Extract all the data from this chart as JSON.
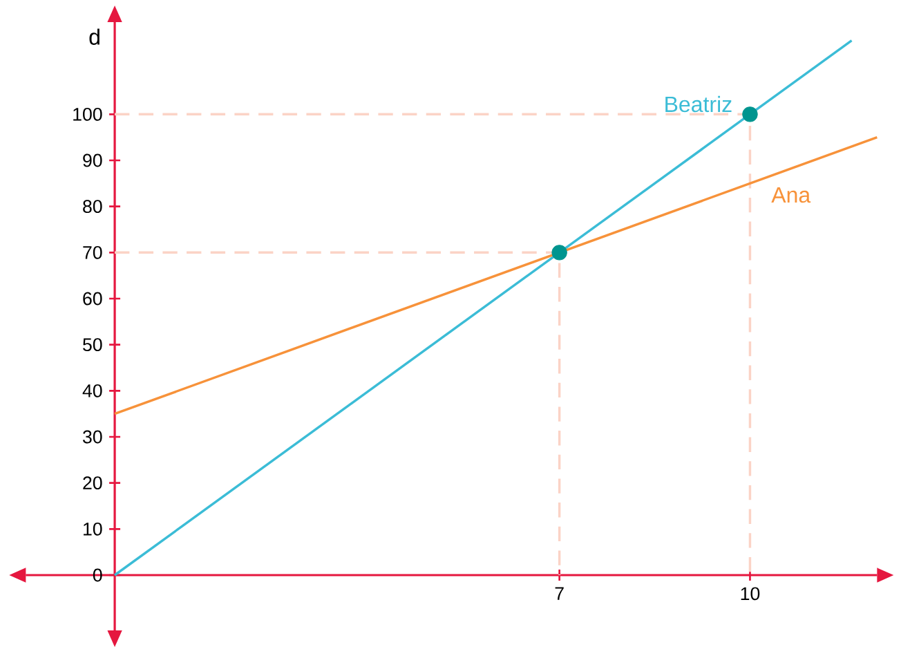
{
  "chart_data": {
    "type": "line",
    "ylabel": "d",
    "xlim": [
      -1.4,
      12
    ],
    "ylim": [
      -12,
      120
    ],
    "xticks": [
      7,
      10
    ],
    "yticks": [
      0,
      10,
      20,
      30,
      40,
      50,
      60,
      70,
      80,
      90,
      100
    ],
    "grid": false,
    "legend": false,
    "series": [
      {
        "color": "#fbd3c6",
        "line_style": "dashed",
        "x": [
          0,
          10,
          10
        ],
        "values": [
          100,
          100,
          0
        ]
      },
      {
        "color": "#fbd3c6",
        "line_style": "dashed",
        "x": [
          0,
          7,
          7
        ],
        "values": [
          70,
          70,
          0
        ]
      },
      {
        "name": "Beatriz",
        "color": "#3bbcd6",
        "line_style": "solid",
        "x": [
          0,
          11.6
        ],
        "values": [
          0,
          116
        ]
      },
      {
        "name": "Ana",
        "color": "#f7923a",
        "line_style": "solid",
        "x": [
          0,
          12
        ],
        "values": [
          35,
          95
        ]
      },
      {
        "type": "scatter",
        "color": "#00958f",
        "marker": "circle",
        "x": [
          7,
          10
        ],
        "values": [
          70,
          100
        ]
      }
    ]
  }
}
